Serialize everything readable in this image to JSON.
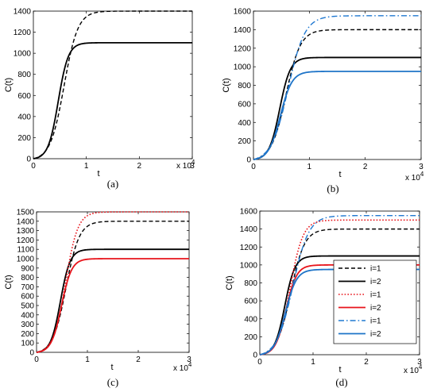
{
  "figure": {
    "panels": [
      "(a)",
      "(b)",
      "(c)",
      "(d)"
    ]
  },
  "colors": {
    "black": "#000000",
    "red": "#e8141b",
    "blue_dashdot": "#1f78d1",
    "blue_solid": "#1e74c8"
  },
  "chart_data": [
    {
      "type": "line",
      "panel_label": "(a)",
      "xlabel": "t",
      "ylabel": "C(t)",
      "x_multiplier": "x 10^4",
      "xlim": [
        0,
        30000
      ],
      "ylim": [
        0,
        1400
      ],
      "xticks": [
        "0",
        "1",
        "2",
        "3"
      ],
      "yticks": [
        "0",
        "200",
        "400",
        "600",
        "800",
        "1000",
        "1200",
        "1400"
      ],
      "grid": false,
      "series": [
        {
          "style": "dashed",
          "color": "#000000",
          "asymptote": 1400,
          "midpoint": 5800,
          "scale": 1300
        },
        {
          "style": "solid",
          "color": "#000000",
          "asymptote": 1100,
          "midpoint": 4700,
          "scale": 950
        }
      ]
    },
    {
      "type": "line",
      "panel_label": "(b)",
      "xlabel": "t",
      "ylabel": "C(t)",
      "x_multiplier": "x 10^4",
      "xlim": [
        0,
        30000
      ],
      "ylim": [
        0,
        1600
      ],
      "xticks": [
        "0",
        "1",
        "2",
        "3"
      ],
      "yticks": [
        "0",
        "200",
        "400",
        "600",
        "800",
        "1000",
        "1200",
        "1400",
        "1600"
      ],
      "grid": false,
      "series": [
        {
          "style": "dashed",
          "color": "#000000",
          "asymptote": 1400,
          "midpoint": 5800,
          "scale": 1300
        },
        {
          "style": "solid",
          "color": "#000000",
          "asymptote": 1100,
          "midpoint": 4700,
          "scale": 950
        },
        {
          "style": "dashdot",
          "color": "#1f78d1",
          "asymptote": 1550,
          "midpoint": 6200,
          "scale": 1500
        },
        {
          "style": "solid",
          "color": "#1e74c8",
          "asymptote": 950,
          "midpoint": 4800,
          "scale": 1050
        }
      ]
    },
    {
      "type": "line",
      "panel_label": "(c)",
      "xlabel": "t",
      "ylabel": "C(t)",
      "x_multiplier": "x 10^4",
      "xlim": [
        0,
        30000
      ],
      "ylim": [
        0,
        1500
      ],
      "xticks": [
        "0",
        "1",
        "2",
        "3"
      ],
      "yticks": [
        "0",
        "100",
        "200",
        "300",
        "400",
        "500",
        "600",
        "700",
        "800",
        "900",
        "1000",
        "1100",
        "1200",
        "1300",
        "1400",
        "1500"
      ],
      "grid": false,
      "series": [
        {
          "style": "dashed",
          "color": "#000000",
          "asymptote": 1400,
          "midpoint": 5800,
          "scale": 1300
        },
        {
          "style": "solid",
          "color": "#000000",
          "asymptote": 1100,
          "midpoint": 4700,
          "scale": 950
        },
        {
          "style": "dotted",
          "color": "#e8141b",
          "asymptote": 1500,
          "midpoint": 5700,
          "scale": 1200
        },
        {
          "style": "solid",
          "color": "#e8141b",
          "asymptote": 1000,
          "midpoint": 4900,
          "scale": 1000
        }
      ]
    },
    {
      "type": "line",
      "panel_label": "(d)",
      "xlabel": "t",
      "ylabel": "C(t)",
      "x_multiplier": "x 10^4",
      "xlim": [
        0,
        30000
      ],
      "ylim": [
        0,
        1600
      ],
      "xticks": [
        "0",
        "1",
        "2",
        "3"
      ],
      "yticks": [
        "0",
        "200",
        "400",
        "600",
        "800",
        "1000",
        "1200",
        "1400",
        "1600"
      ],
      "grid": false,
      "legend": "lower-right",
      "series": [
        {
          "name": "i=1",
          "style": "dashed",
          "color": "#000000",
          "asymptote": 1400,
          "midpoint": 5800,
          "scale": 1300
        },
        {
          "name": "i=2",
          "style": "solid",
          "color": "#000000",
          "asymptote": 1100,
          "midpoint": 4700,
          "scale": 950
        },
        {
          "name": "i=1",
          "style": "dotted",
          "color": "#e8141b",
          "asymptote": 1500,
          "midpoint": 5700,
          "scale": 1200
        },
        {
          "name": "i=2",
          "style": "solid",
          "color": "#e8141b",
          "asymptote": 1000,
          "midpoint": 4900,
          "scale": 1000
        },
        {
          "name": "i=1",
          "style": "dashdot",
          "color": "#1f78d1",
          "asymptote": 1550,
          "midpoint": 6200,
          "scale": 1500
        },
        {
          "name": "i=2",
          "style": "solid",
          "color": "#1e74c8",
          "asymptote": 950,
          "midpoint": 4800,
          "scale": 1050
        }
      ]
    }
  ]
}
